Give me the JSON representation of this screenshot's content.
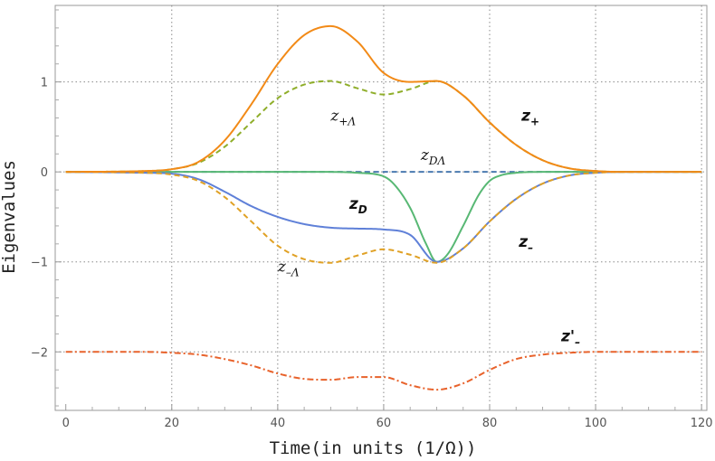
{
  "chart_data": {
    "type": "line",
    "xlabel": "Time(in units (1/Ω))",
    "ylabel": "Eigenvalues",
    "xlim": [
      -2,
      121
    ],
    "ylim": [
      -2.65,
      1.85
    ],
    "xticks": [
      0,
      20,
      40,
      60,
      80,
      100,
      120
    ],
    "yticks": [
      -2,
      -1,
      0,
      1
    ],
    "ytick_labels": [
      "−2",
      "−1",
      "0",
      "1"
    ],
    "grid": "dotted at major ticks",
    "colors": {
      "z_plus": "#f28a17",
      "z_plus_lambda": "#8fae2a",
      "z_D": "#5f80d8",
      "z_D_lambda": "#4a7ab0",
      "z_minus": "#58b874",
      "z_minus_lambda": "#e0a125",
      "z_prime_minus": "#e8622b"
    },
    "series": [
      {
        "key": "z_plus",
        "style": "solid",
        "x": [
          0,
          15,
          20,
          25,
          30,
          35,
          40,
          45,
          50,
          55,
          60,
          65,
          70,
          75,
          80,
          85,
          90,
          95,
          100,
          105,
          120
        ],
        "y": [
          0,
          0.01,
          0.03,
          0.11,
          0.35,
          0.75,
          1.2,
          1.52,
          1.62,
          1.45,
          1.1,
          1.0,
          1.01,
          0.85,
          0.55,
          0.3,
          0.13,
          0.04,
          0.01,
          0,
          0
        ]
      },
      {
        "key": "z_plus_lambda",
        "style": "dashed",
        "x": [
          0,
          15,
          20,
          25,
          30,
          35,
          40,
          45,
          50,
          55,
          60,
          65,
          70,
          75,
          80,
          85,
          90,
          95,
          100,
          105,
          120
        ],
        "y": [
          0,
          0.01,
          0.03,
          0.1,
          0.28,
          0.55,
          0.82,
          0.97,
          1.01,
          0.93,
          0.86,
          0.92,
          1.01,
          0.85,
          0.55,
          0.3,
          0.13,
          0.04,
          0.01,
          0,
          0
        ]
      },
      {
        "key": "z_D",
        "style": "solid",
        "x": [
          0,
          15,
          20,
          25,
          30,
          35,
          40,
          45,
          50,
          55,
          60,
          65,
          70,
          75,
          80,
          85,
          90,
          95,
          100,
          105,
          120
        ],
        "y": [
          0,
          -0.01,
          -0.02,
          -0.08,
          -0.22,
          -0.38,
          -0.5,
          -0.58,
          -0.62,
          -0.63,
          -0.64,
          -0.7,
          -1.0,
          -0.85,
          -0.55,
          -0.3,
          -0.13,
          -0.04,
          -0.01,
          0,
          0
        ]
      },
      {
        "key": "z_D_lambda",
        "style": "dashed",
        "x": [
          0,
          120
        ],
        "y": [
          0,
          0
        ]
      },
      {
        "key": "z_minus",
        "style": "solid",
        "x": [
          0,
          15,
          20,
          25,
          30,
          35,
          40,
          45,
          50,
          55,
          60,
          62,
          65,
          68,
          70,
          72,
          75,
          78,
          80,
          82,
          85,
          90,
          95,
          100,
          105,
          120
        ],
        "y": [
          0,
          0,
          0,
          0,
          0,
          0,
          0,
          0,
          0,
          -0.01,
          -0.05,
          -0.14,
          -0.4,
          -0.8,
          -1.0,
          -0.92,
          -0.6,
          -0.25,
          -0.1,
          -0.04,
          -0.01,
          0,
          0,
          0,
          0,
          0
        ]
      },
      {
        "key": "z_minus_lambda",
        "style": "dashed",
        "x": [
          0,
          15,
          20,
          25,
          30,
          35,
          40,
          45,
          50,
          55,
          60,
          65,
          70,
          75,
          80,
          85,
          90,
          95,
          100,
          105,
          120
        ],
        "y": [
          0,
          -0.01,
          -0.03,
          -0.1,
          -0.28,
          -0.55,
          -0.82,
          -0.97,
          -1.01,
          -0.93,
          -0.86,
          -0.92,
          -1.01,
          -0.85,
          -0.55,
          -0.3,
          -0.13,
          -0.04,
          -0.01,
          0,
          0
        ]
      },
      {
        "key": "z_prime_minus",
        "style": "dashdot",
        "x": [
          0,
          15,
          20,
          25,
          30,
          35,
          40,
          45,
          50,
          55,
          60,
          65,
          70,
          75,
          80,
          85,
          90,
          95,
          100,
          105,
          120
        ],
        "y": [
          -2,
          -2,
          -2.01,
          -2.03,
          -2.08,
          -2.15,
          -2.24,
          -2.3,
          -2.31,
          -2.28,
          -2.28,
          -2.37,
          -2.42,
          -2.35,
          -2.2,
          -2.08,
          -2.03,
          -2.01,
          -2.0,
          -2.0,
          -2.0
        ]
      }
    ],
    "annotations": [
      {
        "key": "ann_zpl",
        "style": "plain",
        "main": "z",
        "sub": "+Λ",
        "x": 50,
        "y": 0.57
      },
      {
        "key": "ann_zp",
        "style": "bold",
        "main": "z",
        "sub": "+",
        "x": 86,
        "y": 0.57
      },
      {
        "key": "ann_zdl",
        "style": "plain",
        "main": "z",
        "sub": "DΛ",
        "x": 67,
        "y": 0.13
      },
      {
        "key": "ann_zd",
        "style": "bold",
        "main": "z",
        "sub": "D",
        "x": 53.5,
        "y": -0.41
      },
      {
        "key": "ann_zm",
        "style": "bold",
        "main": "z",
        "sub": "–",
        "x": 85.5,
        "y": -0.83
      },
      {
        "key": "ann_zml",
        "style": "plain",
        "main": "z",
        "sub": "–Λ",
        "x": 40,
        "y": -1.11
      },
      {
        "key": "ann_zpm",
        "style": "bold",
        "main": "z'",
        "sub": "–",
        "x": 93.5,
        "y": -1.88
      }
    ]
  }
}
